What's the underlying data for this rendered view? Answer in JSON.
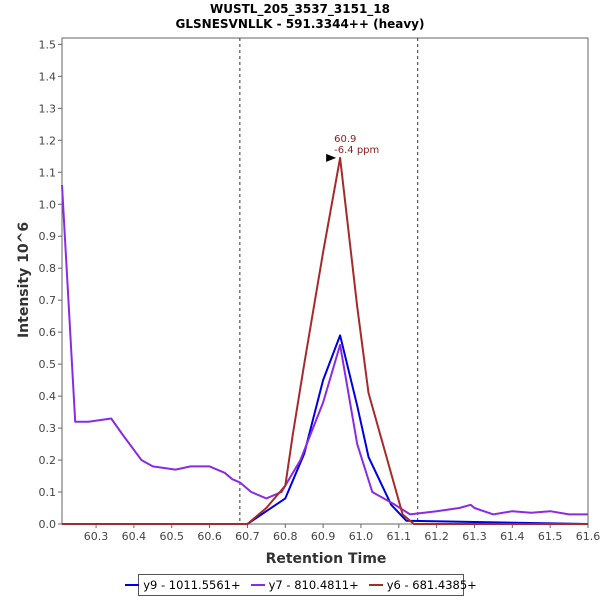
{
  "chart_data": {
    "type": "line",
    "title": "WUSTL_205_3537_3151_18",
    "subtitle": "GLSNESVNLLK - 591.3344++ (heavy)",
    "xlabel": "Retention Time",
    "ylabel": "Intensity 10^6",
    "xlim": [
      60.21,
      61.6
    ],
    "ylim": [
      0,
      1.52
    ],
    "x_ticks": [
      "60.3",
      "60.4",
      "60.5",
      "60.6",
      "60.7",
      "60.8",
      "60.9",
      "61.0",
      "61.1",
      "61.2",
      "61.3",
      "61.4",
      "61.5",
      "61.6"
    ],
    "y_ticks": [
      "0.0",
      "0.1",
      "0.2",
      "0.3",
      "0.4",
      "0.5",
      "0.6",
      "0.7",
      "0.8",
      "0.9",
      "1.0",
      "1.1",
      "1.2",
      "1.3",
      "1.4",
      "1.5"
    ],
    "grid": false,
    "boundary_lines": [
      60.68,
      61.15
    ],
    "annotation": {
      "x": 60.945,
      "y": 1.145,
      "line1": "60.9",
      "line2": "-6.4 ppm"
    },
    "series": [
      {
        "name": "y9 - 1011.5561+",
        "color": "#0000dd",
        "x": [
          60.21,
          60.7,
          60.75,
          60.8,
          60.85,
          60.9,
          60.945,
          60.99,
          61.02,
          61.08,
          61.12,
          61.6
        ],
        "y": [
          0,
          0,
          0.04,
          0.08,
          0.22,
          0.45,
          0.59,
          0.37,
          0.21,
          0.06,
          0.01,
          0
        ]
      },
      {
        "name": "y7 - 810.4811+",
        "color": "#8a2be2",
        "x": [
          60.21,
          60.245,
          60.28,
          60.34,
          60.37,
          60.42,
          60.45,
          60.51,
          60.55,
          60.6,
          60.64,
          60.66,
          60.68,
          60.71,
          60.75,
          60.79,
          60.84,
          60.9,
          60.945,
          60.99,
          61.03,
          61.09,
          61.13,
          61.2,
          61.26,
          61.29,
          61.3,
          61.35,
          61.4,
          61.45,
          61.5,
          61.55,
          61.6
        ],
        "y": [
          1.06,
          0.32,
          0.32,
          0.33,
          0.28,
          0.2,
          0.18,
          0.17,
          0.18,
          0.18,
          0.16,
          0.14,
          0.13,
          0.1,
          0.08,
          0.1,
          0.2,
          0.38,
          0.56,
          0.25,
          0.1,
          0.06,
          0.03,
          0.04,
          0.05,
          0.06,
          0.05,
          0.03,
          0.04,
          0.035,
          0.04,
          0.03,
          0.03
        ]
      },
      {
        "name": "y6 - 681.4385+",
        "color": "#a52a2a",
        "x": [
          60.21,
          60.7,
          60.75,
          60.8,
          60.82,
          60.85,
          60.9,
          60.945,
          60.99,
          61.02,
          61.07,
          61.11,
          61.14,
          61.6
        ],
        "y": [
          0,
          0,
          0.05,
          0.12,
          0.28,
          0.5,
          0.85,
          1.145,
          0.68,
          0.41,
          0.2,
          0.03,
          0,
          0
        ]
      }
    ]
  }
}
